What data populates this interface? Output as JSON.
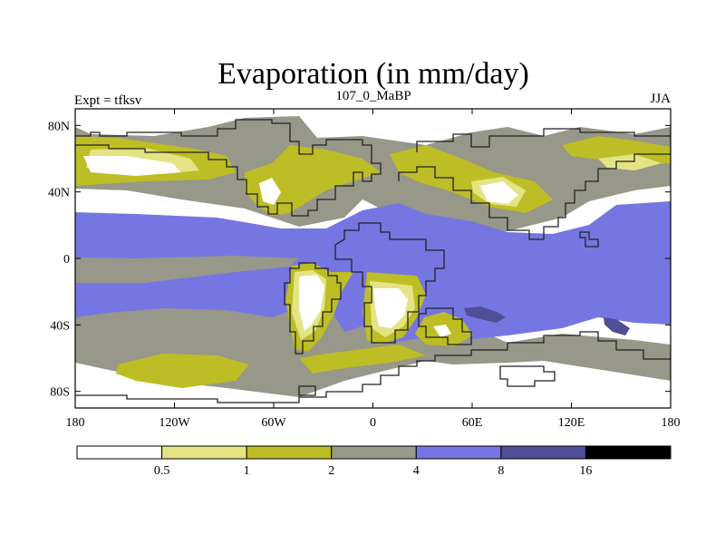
{
  "title": "Evaporation (in mm/day)",
  "experiment_label": "Expt = tfksv",
  "period_label": "107_0_MaBP",
  "season_label": "JJA",
  "map": {
    "projection": "cylindrical-equidistant",
    "lon_range": [
      -180,
      180
    ],
    "lat_range": [
      -90,
      90
    ]
  },
  "lat_ticks": [
    {
      "value": 80,
      "label": "80N"
    },
    {
      "value": 40,
      "label": "40N"
    },
    {
      "value": 0,
      "label": "0"
    },
    {
      "value": -40,
      "label": "40S"
    },
    {
      "value": -80,
      "label": "80S"
    }
  ],
  "lon_ticks": [
    {
      "value": -180,
      "label": "180"
    },
    {
      "value": -120,
      "label": "120W"
    },
    {
      "value": -60,
      "label": "60W"
    },
    {
      "value": 0,
      "label": "0"
    },
    {
      "value": 60,
      "label": "60E"
    },
    {
      "value": 120,
      "label": "120E"
    },
    {
      "value": 180,
      "label": "180"
    }
  ],
  "colorbar": {
    "boundaries": [
      "0.5",
      "1",
      "2",
      "4",
      "8",
      "16"
    ],
    "colors": [
      "#ffffff",
      "#e4e484",
      "#bdbd26",
      "#97978a",
      "#7676e2",
      "#4f4f97",
      "#000000"
    ]
  },
  "chart_data": {
    "type": "filled-contour-map",
    "variable": "Evaporation",
    "units": "mm/day",
    "levels": [
      0.5,
      1,
      2,
      4,
      8,
      16
    ],
    "experiment": "tfksv",
    "period": "107_0_MaBP",
    "season": "JJA"
  }
}
